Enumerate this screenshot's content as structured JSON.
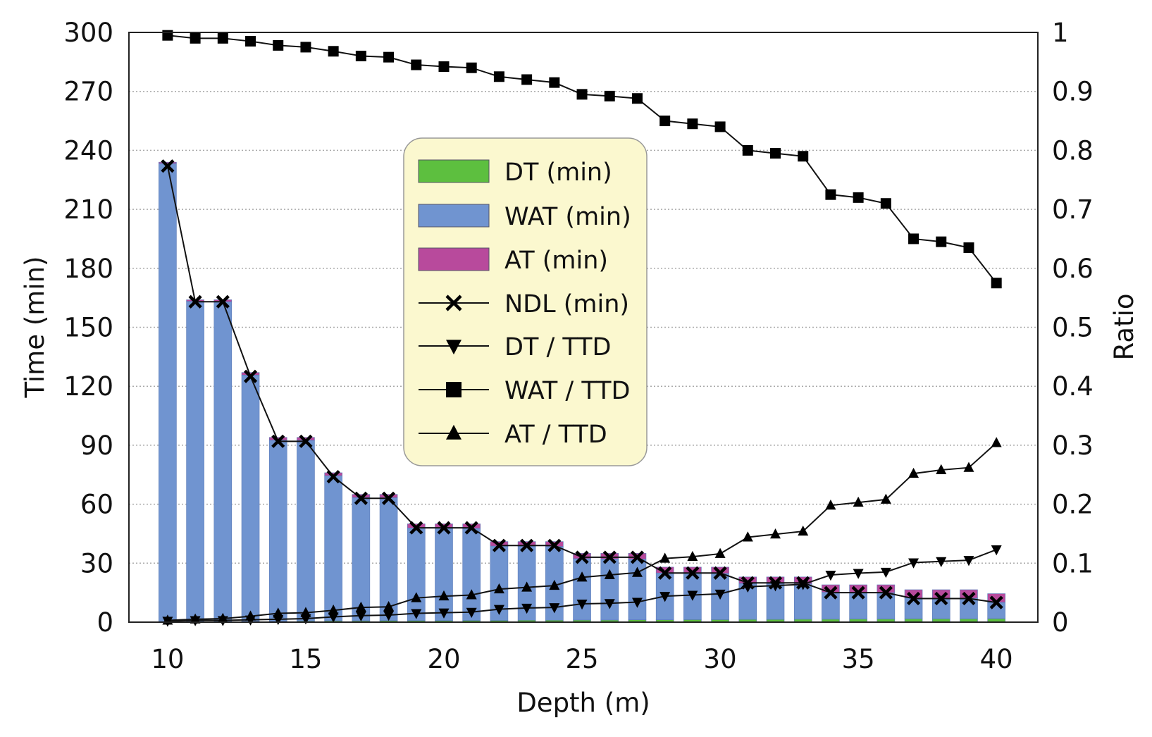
{
  "chart_data": {
    "type": "bar",
    "stacked": true,
    "xlabel": "Depth (m)",
    "ylabel": "Time (min)",
    "y2label": "Ratio",
    "xlim": [
      8.6,
      41.5
    ],
    "ylim": [
      0,
      300
    ],
    "y2lim": [
      0,
      1
    ],
    "xticks": [
      10,
      15,
      20,
      25,
      30,
      35,
      40
    ],
    "yticks": [
      0,
      30,
      60,
      90,
      120,
      150,
      180,
      210,
      240,
      270,
      300
    ],
    "y2ticks": [
      "0",
      "0.1",
      "0.2",
      "0.3",
      "0.4",
      "0.5",
      "0.6",
      "0.7",
      "0.8",
      "0.9",
      "1"
    ],
    "grid": "horizontal-dotted",
    "legend_position": "center-top",
    "x": [
      10,
      11,
      12,
      13,
      14,
      15,
      16,
      17,
      18,
      19,
      20,
      21,
      22,
      23,
      24,
      25,
      26,
      27,
      28,
      29,
      30,
      31,
      32,
      33,
      34,
      35,
      36,
      37,
      38,
      39,
      40
    ],
    "bar_series": [
      {
        "name": "DT (min)",
        "color": "#5dbf3f",
        "values": [
          0.5,
          0.5,
          0.5,
          0.5,
          0.5,
          0.6,
          0.7,
          0.7,
          0.8,
          0.8,
          0.8,
          0.9,
          0.9,
          1.0,
          1.0,
          1.1,
          1.1,
          1.2,
          1.2,
          1.3,
          1.3,
          1.4,
          1.4,
          1.5,
          1.5,
          1.6,
          1.6,
          1.7,
          1.7,
          1.7,
          1.8
        ]
      },
      {
        "name": "WAT (min)",
        "color": "#7094d0",
        "values": [
          232.8,
          162.7,
          162.5,
          125.2,
          92.1,
          91.9,
          73.8,
          62.7,
          62.5,
          47.1,
          47.0,
          46.8,
          37.8,
          37.6,
          37.5,
          31.2,
          31.1,
          30.9,
          23.8,
          23.6,
          23.5,
          18.3,
          18.2,
          18.0,
          13.7,
          13.5,
          13.4,
          10.6,
          10.5,
          10.5,
          8.3
        ]
      },
      {
        "name": "AT (min)",
        "color": "#b84a9c",
        "values": [
          0.7,
          0.8,
          1.0,
          1.3,
          1.4,
          1.5,
          1.5,
          1.6,
          1.7,
          2.1,
          2.2,
          2.3,
          2.3,
          2.4,
          2.5,
          2.7,
          2.8,
          2.9,
          3.0,
          3.1,
          3.2,
          3.3,
          3.4,
          3.5,
          3.8,
          3.9,
          4.0,
          4.2,
          4.3,
          4.3,
          4.4
        ]
      }
    ],
    "line_series": [
      {
        "name": "NDL (min)",
        "marker": "x",
        "axis": "left",
        "values": [
          232,
          163,
          163,
          125,
          92,
          92,
          74,
          63,
          63,
          48,
          48,
          48,
          39,
          39,
          39,
          33,
          33,
          33,
          25,
          25,
          25,
          20,
          20,
          20,
          15,
          15,
          15,
          12,
          12,
          12,
          10
        ]
      },
      {
        "name": "DT / TTD",
        "marker": "triangle-down",
        "axis": "right",
        "values": [
          0.002,
          0.003,
          0.003,
          0.004,
          0.005,
          0.006,
          0.009,
          0.011,
          0.012,
          0.015,
          0.016,
          0.017,
          0.022,
          0.024,
          0.025,
          0.031,
          0.032,
          0.034,
          0.044,
          0.046,
          0.048,
          0.06,
          0.062,
          0.064,
          0.08,
          0.083,
          0.085,
          0.101,
          0.103,
          0.105,
          0.123
        ]
      },
      {
        "name": "WAT / TTD",
        "marker": "square",
        "axis": "right",
        "values": [
          0.995,
          0.99,
          0.99,
          0.985,
          0.978,
          0.975,
          0.968,
          0.96,
          0.958,
          0.945,
          0.942,
          0.94,
          0.925,
          0.92,
          0.915,
          0.895,
          0.892,
          0.888,
          0.85,
          0.845,
          0.84,
          0.8,
          0.795,
          0.79,
          0.725,
          0.72,
          0.71,
          0.65,
          0.645,
          0.635,
          0.575
        ]
      },
      {
        "name": "AT / TTD",
        "marker": "triangle-up",
        "axis": "right",
        "values": [
          0.003,
          0.005,
          0.006,
          0.01,
          0.015,
          0.016,
          0.02,
          0.025,
          0.026,
          0.041,
          0.044,
          0.046,
          0.056,
          0.059,
          0.062,
          0.076,
          0.08,
          0.084,
          0.108,
          0.111,
          0.116,
          0.144,
          0.149,
          0.154,
          0.198,
          0.203,
          0.208,
          0.252,
          0.258,
          0.262,
          0.304
        ]
      }
    ],
    "legend_background": "#fbf8cf"
  }
}
